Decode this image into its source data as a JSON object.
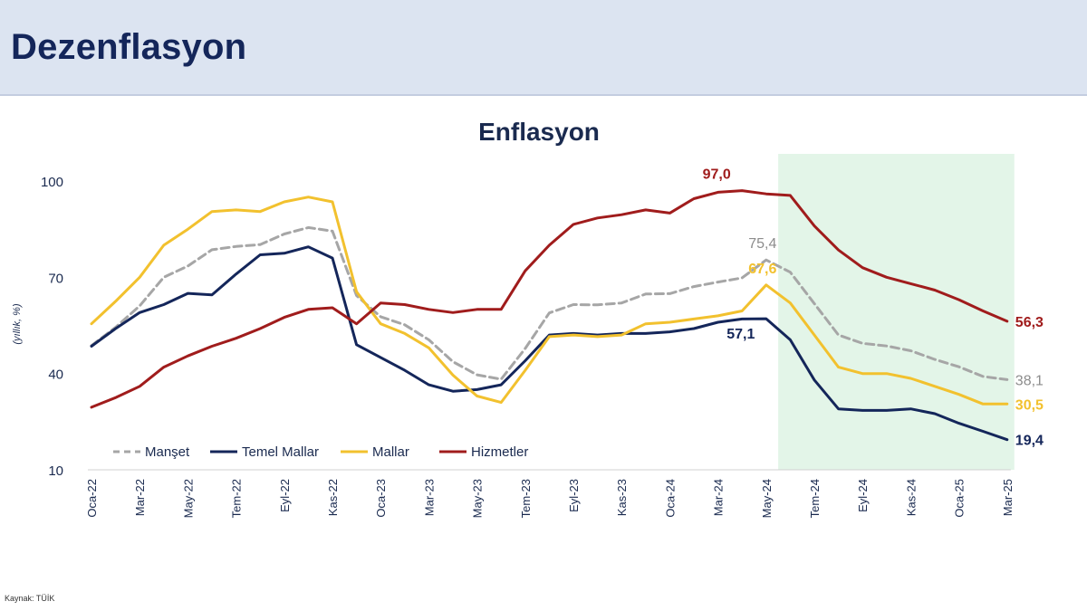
{
  "page": {
    "title": "Dezenflasyon",
    "source": "Kaynak: TÜİK"
  },
  "chart_data": {
    "type": "line",
    "title": "Enflasyon",
    "ylabel": "(yıllık, %)",
    "xlabel": "",
    "ylim": [
      10,
      100
    ],
    "yticks": [
      "10",
      "40",
      "70",
      "100"
    ],
    "x_tick_labels": [
      "Oca-22",
      "Mar-22",
      "May-22",
      "Tem-22",
      "Eyl-22",
      "Kas-22",
      "Oca-23",
      "Mar-23",
      "May-23",
      "Tem-23",
      "Eyl-23",
      "Kas-23",
      "Oca-24",
      "Mar-24",
      "May-24",
      "Tem-24",
      "Eyl-24",
      "Kas-24",
      "Oca-25",
      "Mar-25"
    ],
    "x": [
      "Oca-22",
      "Şub-22",
      "Mar-22",
      "Nis-22",
      "May-22",
      "Haz-22",
      "Tem-22",
      "Ağu-22",
      "Eyl-22",
      "Eki-22",
      "Kas-22",
      "Ara-22",
      "Oca-23",
      "Şub-23",
      "Mar-23",
      "Nis-23",
      "May-23",
      "Haz-23",
      "Tem-23",
      "Ağu-23",
      "Eyl-23",
      "Eki-23",
      "Kas-23",
      "Ara-23",
      "Oca-24",
      "Şub-24",
      "Mar-24",
      "Nis-24",
      "May-24",
      "Haz-24",
      "Tem-24",
      "Ağu-24",
      "Eyl-24",
      "Eki-24",
      "Kas-24",
      "Ara-24",
      "Oca-25",
      "Şub-25",
      "Mar-25"
    ],
    "shaded_range": [
      "Haz-24",
      "Mar-25"
    ],
    "shaded_color": "#e3f5e8",
    "grid": false,
    "legend_position": "bottom-left",
    "series": [
      {
        "name": "Manşet",
        "color": "#a6a6a6",
        "dashed": true,
        "values": [
          48.7,
          54.4,
          61.1,
          70.0,
          73.5,
          78.6,
          79.6,
          80.2,
          83.5,
          85.5,
          84.4,
          64.3,
          57.7,
          55.2,
          50.5,
          43.7,
          39.6,
          38.2,
          47.8,
          58.9,
          61.5,
          61.4,
          62.0,
          64.8,
          64.9,
          67.1,
          68.5,
          69.8,
          75.4,
          71.6,
          61.8,
          52.0,
          49.4,
          48.6,
          47.1,
          44.4,
          42.1,
          39.1,
          38.1
        ],
        "labels": [
          {
            "index": 28,
            "text": "75,4"
          },
          {
            "index": 38,
            "text": "38,1"
          }
        ]
      },
      {
        "name": "Temel Mallar",
        "color": "#14265a",
        "dashed": false,
        "values": [
          48.5,
          54.0,
          59.0,
          61.5,
          65.0,
          64.5,
          71.0,
          77.0,
          77.5,
          79.5,
          76.0,
          49.0,
          45.0,
          41.0,
          36.5,
          34.5,
          35.0,
          36.5,
          44.0,
          52.0,
          52.5,
          52.0,
          52.5,
          52.5,
          53.0,
          54.0,
          56.0,
          57.0,
          57.1,
          50.5,
          38.0,
          29.0,
          28.5,
          28.5,
          29.0,
          27.5,
          24.5,
          22.0,
          19.4
        ],
        "labels": [
          {
            "index": 28,
            "text": "57,1"
          },
          {
            "index": 38,
            "text": "19,4"
          }
        ]
      },
      {
        "name": "Mallar",
        "color": "#f2c12e",
        "dashed": false,
        "values": [
          55.5,
          62.5,
          70.0,
          80.0,
          85.0,
          90.5,
          91.0,
          90.5,
          93.5,
          95.0,
          93.5,
          65.5,
          55.5,
          52.5,
          48.0,
          39.5,
          33.0,
          31.0,
          41.0,
          51.5,
          52.0,
          51.5,
          52.0,
          55.5,
          56.0,
          57.0,
          58.0,
          59.5,
          67.6,
          62.0,
          52.0,
          42.0,
          40.0,
          40.0,
          38.5,
          36.0,
          33.5,
          30.5,
          30.5
        ],
        "labels": [
          {
            "index": 28,
            "text": "67,6"
          },
          {
            "index": 38,
            "text": "30,5"
          }
        ]
      },
      {
        "name": "Hizmetler",
        "color": "#a01c1c",
        "dashed": false,
        "values": [
          29.5,
          32.5,
          36.0,
          42.0,
          45.5,
          48.5,
          51.0,
          54.0,
          57.5,
          60.0,
          60.5,
          55.5,
          62.0,
          61.5,
          60.0,
          59.0,
          60.0,
          60.0,
          72.0,
          80.0,
          86.5,
          88.5,
          89.5,
          91.0,
          90.0,
          94.5,
          96.5,
          97.0,
          96.0,
          95.5,
          86.0,
          78.5,
          73.0,
          70.0,
          68.0,
          66.0,
          63.0,
          59.5,
          56.3
        ],
        "labels": [
          {
            "index": 27,
            "text": "97,0"
          },
          {
            "index": 38,
            "text": "56,3"
          }
        ]
      }
    ]
  }
}
